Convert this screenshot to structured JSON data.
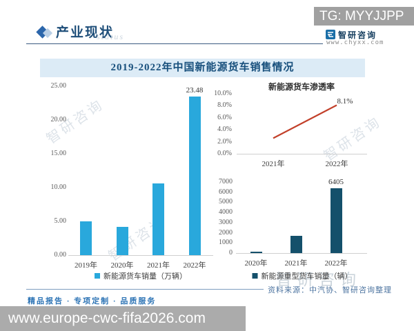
{
  "badges": {
    "tg": "TG: MYYJJPP"
  },
  "header": {
    "title": "产业现状",
    "watermark": "status",
    "brand": "智研咨询",
    "brand_url": "www.chyxx.com"
  },
  "main": {
    "title": "2019-2022年中国新能源货车销售情况",
    "source": "资料来源：中汽协、智研咨询整理"
  },
  "footer": {
    "tagline": "精品报告 · 专项定制 · 品质服务",
    "url": "www.europe-cwc-fifa2026.com"
  },
  "colors": {
    "accent_blue": "#1f4e79",
    "bar_cyan": "#29a8dc",
    "bar_dark": "#14506b",
    "line_red": "#c2402a",
    "band_gray": "#a5a5a5",
    "title_band_bg": "#dcebf6"
  },
  "chart_data": [
    {
      "id": "truck_sales",
      "type": "bar",
      "title": "",
      "legend": "新能源货车销量（万辆）",
      "categories": [
        "2019年",
        "2020年",
        "2021年",
        "2022年"
      ],
      "values": [
        5.0,
        4.2,
        10.6,
        23.48
      ],
      "data_labels": [
        {
          "index": 3,
          "text": "23.48"
        }
      ],
      "ylim": [
        0,
        25
      ],
      "ytick_values": [
        0,
        5,
        10,
        15,
        20,
        25
      ],
      "ytick_labels": [
        "0.00",
        "5.00",
        "10.00",
        "15.00",
        "20.00",
        "25.00"
      ],
      "bar_color": "#29a8dc",
      "grid": false,
      "legend_position": "bottom"
    },
    {
      "id": "penetration",
      "type": "line",
      "title": "新能源货车渗透率",
      "x": [
        "2021年",
        "2022年"
      ],
      "values": [
        2.6,
        8.1
      ],
      "data_labels": [
        {
          "index": 1,
          "text": "8.1%"
        }
      ],
      "ylim": [
        0,
        10
      ],
      "ytick_values": [
        0,
        2,
        4,
        6,
        8,
        10
      ],
      "ytick_labels": [
        "0.0%",
        "2.0%",
        "4.0%",
        "6.0%",
        "8.0%",
        "10.0%"
      ],
      "line_color": "#c2402a",
      "grid": false
    },
    {
      "id": "heavy_truck_sales",
      "type": "bar",
      "title": "",
      "legend": "新能源重型货车销量（辆）",
      "categories": [
        "2020年",
        "2021年",
        "2022年"
      ],
      "values": [
        100,
        1700,
        6405
      ],
      "data_labels": [
        {
          "index": 2,
          "text": "6405"
        }
      ],
      "ylim": [
        0,
        7000
      ],
      "ytick_values": [
        0,
        1000,
        2000,
        3000,
        4000,
        5000,
        6000,
        7000
      ],
      "ytick_labels": [
        "0",
        "1000",
        "2000",
        "3000",
        "4000",
        "5000",
        "6000",
        "7000"
      ],
      "bar_color": "#14506b",
      "grid": false,
      "legend_position": "bottom"
    }
  ]
}
